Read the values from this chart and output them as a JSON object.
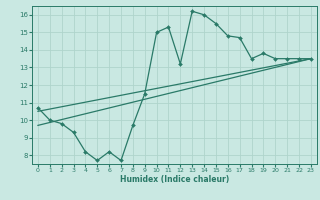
{
  "main_x": [
    0,
    1,
    2,
    3,
    4,
    5,
    6,
    7,
    8,
    9,
    10,
    11,
    12,
    13,
    14,
    15,
    16,
    17,
    18,
    19,
    20,
    21,
    22,
    23
  ],
  "main_y": [
    10.7,
    10.0,
    9.8,
    9.3,
    8.2,
    7.7,
    8.2,
    7.7,
    9.7,
    11.5,
    15.0,
    15.3,
    13.2,
    16.2,
    16.0,
    15.5,
    14.8,
    14.7,
    13.5,
    13.8,
    13.5,
    13.5,
    13.5,
    13.5
  ],
  "line1_x": [
    0,
    23
  ],
  "line1_y": [
    10.5,
    13.5
  ],
  "line2_x": [
    0,
    23
  ],
  "line2_y": [
    9.7,
    13.5
  ],
  "bg_color": "#c9e8e2",
  "grid_color": "#afd4cc",
  "line_color": "#2a7a68",
  "xlim": [
    -0.5,
    23.5
  ],
  "ylim": [
    7.5,
    16.5
  ],
  "yticks": [
    8,
    9,
    10,
    11,
    12,
    13,
    14,
    15,
    16
  ],
  "xticks": [
    0,
    1,
    2,
    3,
    4,
    5,
    6,
    7,
    8,
    9,
    10,
    11,
    12,
    13,
    14,
    15,
    16,
    17,
    18,
    19,
    20,
    21,
    22,
    23
  ],
  "xlabel": "Humidex (Indice chaleur)"
}
